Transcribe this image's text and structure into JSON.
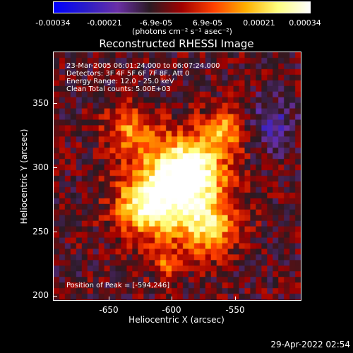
{
  "colorbar": {
    "ticks": [
      "-0.00034",
      "-0.00021",
      "-6.9e-05",
      "6.9e-05",
      "0.00021",
      "0.00034"
    ],
    "unit_label": "(photons cm⁻² s⁻¹ asec⁻²)",
    "colors": [
      "#0000ff",
      "#2a1cc8",
      "#6a2fa6",
      "#2a1a22",
      "#a00000",
      "#ff4000",
      "#ffb000",
      "#ffff80",
      "#ffffff"
    ]
  },
  "image": {
    "title": "Reconstructed RHESSI Image",
    "info_lines": [
      "23-Mar-2005 06:01:24.000 to 06:07:24.000",
      "Detectors: 3F 4F 5F 6F 7F 8F, Att 0",
      "Energy Range: 12.0 - 25.0 keV",
      "Clean     Total counts: 5.00E+03"
    ],
    "peak_label": "Position of Peak = [-594,246]",
    "x_axis": {
      "label": "Heliocentric X (arcsec)",
      "ticks": [
        "-650",
        "-600",
        "-550"
      ]
    },
    "y_axis": {
      "label": "Heliocentric Y (arcsec)",
      "ticks": [
        "350",
        "300",
        "250",
        "200"
      ]
    }
  },
  "footer": {
    "timestamp": "29-Apr-2022 02:54"
  }
}
